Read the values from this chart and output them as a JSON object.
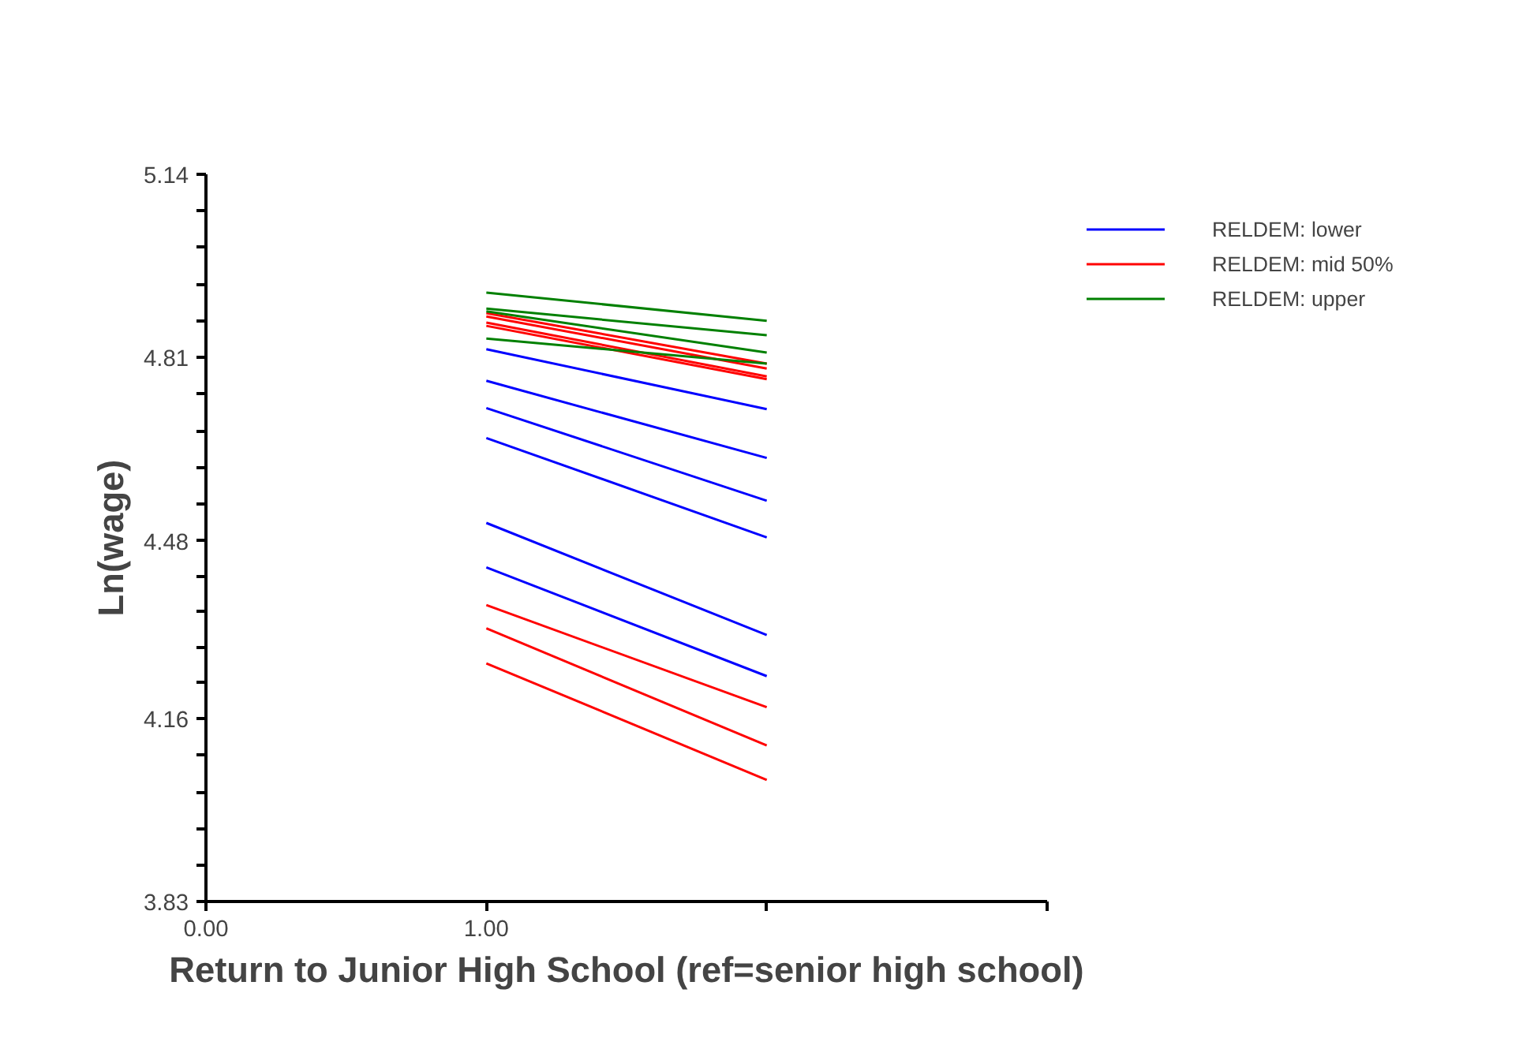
{
  "chart_data": {
    "type": "line",
    "xlabel": "Return to Junior High School (ref=senior high school)",
    "ylabel": "Ln(wage)",
    "xlim": [
      0,
      3
    ],
    "xticks": [
      {
        "value": 0,
        "label": "0.00"
      },
      {
        "value": 1,
        "label": "1.00"
      },
      {
        "value": 2,
        "label": null
      },
      {
        "value": 3,
        "label": null
      }
    ],
    "ylim": [
      3.83,
      5.14
    ],
    "yticks": [
      3.83,
      {
        "value": 3.896,
        "label": null
      },
      {
        "value": 3.961,
        "label": null
      },
      {
        "value": 4.027,
        "label": null
      },
      {
        "value": 4.093,
        "label": null
      },
      4.16,
      {
        "value": 4.224,
        "label": null
      },
      {
        "value": 4.288,
        "label": null
      },
      {
        "value": 4.352,
        "label": null
      },
      {
        "value": 4.416,
        "label": null
      },
      4.48,
      {
        "value": 4.546,
        "label": null
      },
      {
        "value": 4.612,
        "label": null
      },
      {
        "value": 4.678,
        "label": null
      },
      {
        "value": 4.744,
        "label": null
      },
      4.81,
      {
        "value": 4.876,
        "label": null
      },
      {
        "value": 4.942,
        "label": null
      },
      {
        "value": 5.008,
        "label": null
      },
      {
        "value": 5.074,
        "label": null
      },
      5.14
    ],
    "x": [
      1,
      2
    ],
    "grid": false,
    "legend": "top right",
    "marker": "none",
    "line_style": "solid",
    "series": [
      {
        "name": "RELDEM: lower",
        "color": "#0000ff",
        "values": [
          4.825,
          4.717
        ]
      },
      {
        "color": "#0000ff",
        "values": [
          4.768,
          4.629
        ]
      },
      {
        "color": "#0000ff",
        "values": [
          4.719,
          4.552
        ]
      },
      {
        "color": "#0000ff",
        "values": [
          4.665,
          4.486
        ]
      },
      {
        "color": "#0000ff",
        "values": [
          4.512,
          4.31
        ]
      },
      {
        "color": "#0000ff",
        "values": [
          4.432,
          4.236
        ]
      },
      {
        "name": "RELDEM: mid 50%",
        "color": "#ff0000",
        "values": [
          4.89,
          4.799
        ]
      },
      {
        "color": "#ff0000",
        "values": [
          4.884,
          4.79
        ]
      },
      {
        "color": "#ff0000",
        "values": [
          4.873,
          4.776
        ]
      },
      {
        "color": "#ff0000",
        "values": [
          4.867,
          4.771
        ]
      },
      {
        "color": "#ff0000",
        "values": [
          4.364,
          4.18
        ]
      },
      {
        "color": "#ff0000",
        "values": [
          4.322,
          4.111
        ]
      },
      {
        "color": "#ff0000",
        "values": [
          4.259,
          4.049
        ]
      },
      {
        "name": "RELDEM: upper",
        "color": "#008000",
        "values": [
          4.927,
          4.876
        ]
      },
      {
        "color": "#008000",
        "values": [
          4.898,
          4.85
        ]
      },
      {
        "color": "#008000",
        "values": [
          4.893,
          4.819
        ]
      },
      {
        "color": "#008000",
        "values": [
          4.844,
          4.799
        ]
      }
    ]
  }
}
